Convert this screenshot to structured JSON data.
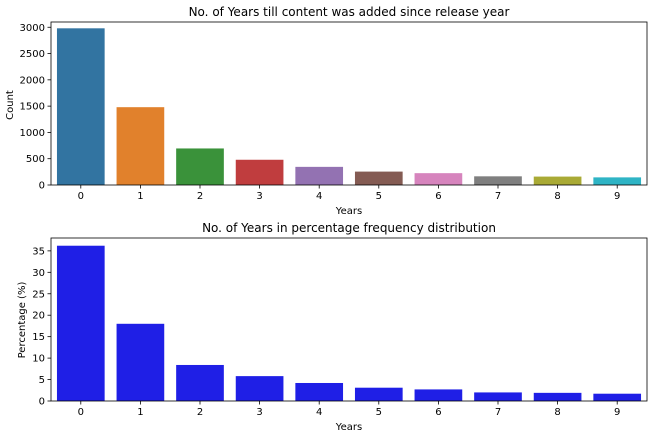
{
  "chart_data": [
    {
      "type": "bar",
      "title": "No. of Years till content was added since release year",
      "xlabel": "Years",
      "ylabel": "Count",
      "categories": [
        "0",
        "1",
        "2",
        "3",
        "4",
        "5",
        "6",
        "7",
        "8",
        "9"
      ],
      "values": [
        2980,
        1480,
        695,
        480,
        345,
        255,
        225,
        165,
        160,
        145
      ],
      "ylim": [
        0,
        3100
      ],
      "yticks": [
        0,
        500,
        1000,
        1500,
        2000,
        2500,
        3000
      ],
      "colors": [
        "#3274a1",
        "#e1812c",
        "#3a923a",
        "#c03d3e",
        "#9372b2",
        "#845b53",
        "#d684bd",
        "#7f7f7f",
        "#a9aa35",
        "#2eb4c5"
      ],
      "grid": false
    },
    {
      "type": "bar",
      "title": "No. of Years in percentage frequency distribution",
      "xlabel": "Years",
      "ylabel": "Percentage (%)",
      "categories": [
        "0",
        "1",
        "2",
        "3",
        "4",
        "5",
        "6",
        "7",
        "8",
        "9"
      ],
      "values": [
        36.2,
        18.0,
        8.4,
        5.8,
        4.2,
        3.1,
        2.7,
        2.0,
        1.9,
        1.7
      ],
      "ylim": [
        0,
        38
      ],
      "yticks": [
        0,
        5,
        10,
        15,
        20,
        25,
        30,
        35
      ],
      "colors": [
        "#1f1fe6"
      ],
      "grid": false
    }
  ]
}
